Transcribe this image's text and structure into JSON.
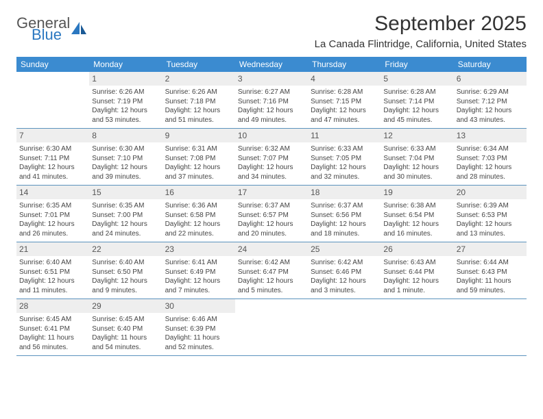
{
  "brand": {
    "word1": "General",
    "word2": "Blue",
    "brand_color": "#2a77c0",
    "text_color": "#555555"
  },
  "title": "September 2025",
  "location": "La Canada Flintridge, California, United States",
  "header_bg": "#3b8bd0",
  "daynum_bg": "#eeeeee",
  "week_border": "#5a92bd",
  "weekdays": [
    "Sunday",
    "Monday",
    "Tuesday",
    "Wednesday",
    "Thursday",
    "Friday",
    "Saturday"
  ],
  "weeks": [
    [
      {
        "num": "",
        "lines": []
      },
      {
        "num": "1",
        "lines": [
          "Sunrise: 6:26 AM",
          "Sunset: 7:19 PM",
          "Daylight: 12 hours and 53 minutes."
        ]
      },
      {
        "num": "2",
        "lines": [
          "Sunrise: 6:26 AM",
          "Sunset: 7:18 PM",
          "Daylight: 12 hours and 51 minutes."
        ]
      },
      {
        "num": "3",
        "lines": [
          "Sunrise: 6:27 AM",
          "Sunset: 7:16 PM",
          "Daylight: 12 hours and 49 minutes."
        ]
      },
      {
        "num": "4",
        "lines": [
          "Sunrise: 6:28 AM",
          "Sunset: 7:15 PM",
          "Daylight: 12 hours and 47 minutes."
        ]
      },
      {
        "num": "5",
        "lines": [
          "Sunrise: 6:28 AM",
          "Sunset: 7:14 PM",
          "Daylight: 12 hours and 45 minutes."
        ]
      },
      {
        "num": "6",
        "lines": [
          "Sunrise: 6:29 AM",
          "Sunset: 7:12 PM",
          "Daylight: 12 hours and 43 minutes."
        ]
      }
    ],
    [
      {
        "num": "7",
        "lines": [
          "Sunrise: 6:30 AM",
          "Sunset: 7:11 PM",
          "Daylight: 12 hours and 41 minutes."
        ]
      },
      {
        "num": "8",
        "lines": [
          "Sunrise: 6:30 AM",
          "Sunset: 7:10 PM",
          "Daylight: 12 hours and 39 minutes."
        ]
      },
      {
        "num": "9",
        "lines": [
          "Sunrise: 6:31 AM",
          "Sunset: 7:08 PM",
          "Daylight: 12 hours and 37 minutes."
        ]
      },
      {
        "num": "10",
        "lines": [
          "Sunrise: 6:32 AM",
          "Sunset: 7:07 PM",
          "Daylight: 12 hours and 34 minutes."
        ]
      },
      {
        "num": "11",
        "lines": [
          "Sunrise: 6:33 AM",
          "Sunset: 7:05 PM",
          "Daylight: 12 hours and 32 minutes."
        ]
      },
      {
        "num": "12",
        "lines": [
          "Sunrise: 6:33 AM",
          "Sunset: 7:04 PM",
          "Daylight: 12 hours and 30 minutes."
        ]
      },
      {
        "num": "13",
        "lines": [
          "Sunrise: 6:34 AM",
          "Sunset: 7:03 PM",
          "Daylight: 12 hours and 28 minutes."
        ]
      }
    ],
    [
      {
        "num": "14",
        "lines": [
          "Sunrise: 6:35 AM",
          "Sunset: 7:01 PM",
          "Daylight: 12 hours and 26 minutes."
        ]
      },
      {
        "num": "15",
        "lines": [
          "Sunrise: 6:35 AM",
          "Sunset: 7:00 PM",
          "Daylight: 12 hours and 24 minutes."
        ]
      },
      {
        "num": "16",
        "lines": [
          "Sunrise: 6:36 AM",
          "Sunset: 6:58 PM",
          "Daylight: 12 hours and 22 minutes."
        ]
      },
      {
        "num": "17",
        "lines": [
          "Sunrise: 6:37 AM",
          "Sunset: 6:57 PM",
          "Daylight: 12 hours and 20 minutes."
        ]
      },
      {
        "num": "18",
        "lines": [
          "Sunrise: 6:37 AM",
          "Sunset: 6:56 PM",
          "Daylight: 12 hours and 18 minutes."
        ]
      },
      {
        "num": "19",
        "lines": [
          "Sunrise: 6:38 AM",
          "Sunset: 6:54 PM",
          "Daylight: 12 hours and 16 minutes."
        ]
      },
      {
        "num": "20",
        "lines": [
          "Sunrise: 6:39 AM",
          "Sunset: 6:53 PM",
          "Daylight: 12 hours and 13 minutes."
        ]
      }
    ],
    [
      {
        "num": "21",
        "lines": [
          "Sunrise: 6:40 AM",
          "Sunset: 6:51 PM",
          "Daylight: 12 hours and 11 minutes."
        ]
      },
      {
        "num": "22",
        "lines": [
          "Sunrise: 6:40 AM",
          "Sunset: 6:50 PM",
          "Daylight: 12 hours and 9 minutes."
        ]
      },
      {
        "num": "23",
        "lines": [
          "Sunrise: 6:41 AM",
          "Sunset: 6:49 PM",
          "Daylight: 12 hours and 7 minutes."
        ]
      },
      {
        "num": "24",
        "lines": [
          "Sunrise: 6:42 AM",
          "Sunset: 6:47 PM",
          "Daylight: 12 hours and 5 minutes."
        ]
      },
      {
        "num": "25",
        "lines": [
          "Sunrise: 6:42 AM",
          "Sunset: 6:46 PM",
          "Daylight: 12 hours and 3 minutes."
        ]
      },
      {
        "num": "26",
        "lines": [
          "Sunrise: 6:43 AM",
          "Sunset: 6:44 PM",
          "Daylight: 12 hours and 1 minute."
        ]
      },
      {
        "num": "27",
        "lines": [
          "Sunrise: 6:44 AM",
          "Sunset: 6:43 PM",
          "Daylight: 11 hours and 59 minutes."
        ]
      }
    ],
    [
      {
        "num": "28",
        "lines": [
          "Sunrise: 6:45 AM",
          "Sunset: 6:41 PM",
          "Daylight: 11 hours and 56 minutes."
        ]
      },
      {
        "num": "29",
        "lines": [
          "Sunrise: 6:45 AM",
          "Sunset: 6:40 PM",
          "Daylight: 11 hours and 54 minutes."
        ]
      },
      {
        "num": "30",
        "lines": [
          "Sunrise: 6:46 AM",
          "Sunset: 6:39 PM",
          "Daylight: 11 hours and 52 minutes."
        ]
      },
      {
        "num": "",
        "lines": []
      },
      {
        "num": "",
        "lines": []
      },
      {
        "num": "",
        "lines": []
      },
      {
        "num": "",
        "lines": []
      }
    ]
  ]
}
